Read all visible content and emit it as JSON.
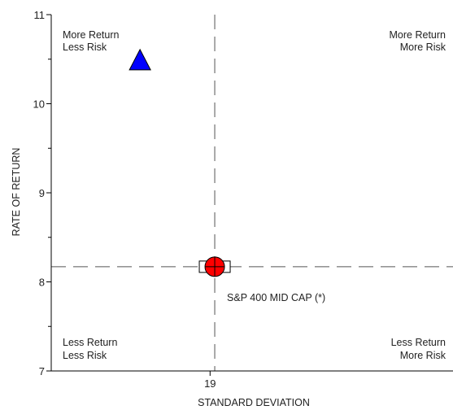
{
  "chart_data": {
    "type": "scatter",
    "xlabel": "STANDARD DEVIATION",
    "ylabel": "RATE OF RETURN",
    "xlim": [
      17.3,
      21.6
    ],
    "ylim": [
      7,
      11
    ],
    "x_ticks": [
      "19"
    ],
    "y_ticks": [
      "7",
      "8",
      "9",
      "10",
      "11"
    ],
    "grid": false,
    "reference_lines": {
      "x": 19.05,
      "y": 8.17
    },
    "quadrants": {
      "top_left": [
        "More Return",
        "Less Risk"
      ],
      "top_right": [
        "More Return",
        "More Risk"
      ],
      "bottom_left": [
        "Less Return",
        "Less Risk"
      ],
      "bottom_right": [
        "Less Return",
        "More Risk"
      ]
    },
    "points": [
      {
        "x": 18.25,
        "y": 10.49,
        "marker": "triangle",
        "color": "#0000ff",
        "label": ""
      },
      {
        "x": 19.05,
        "y": 8.17,
        "marker": "circle-cross",
        "color": "#ff0000",
        "label": ""
      },
      {
        "x": 19.05,
        "y": 8.17,
        "marker": "square",
        "color": "#ffffff",
        "label": "S&P 400 MID CAP (*)"
      }
    ],
    "colors": {
      "axis": "#000000",
      "reference": "#555555",
      "triangle": "#0000ff",
      "circle": "#ff0000"
    }
  }
}
